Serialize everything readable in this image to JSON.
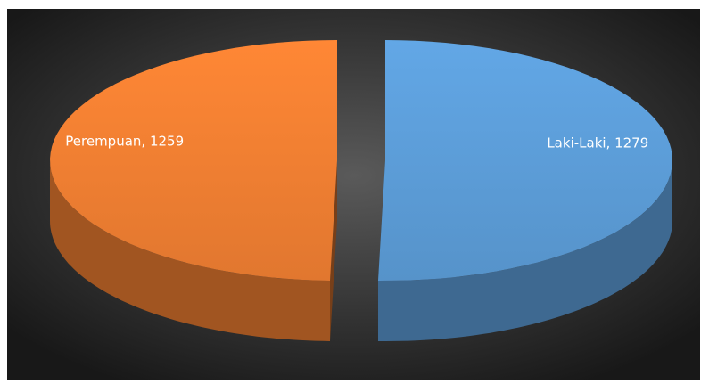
{
  "chart_data": {
    "type": "pie3d",
    "values": [
      1279,
      1259
    ],
    "value_labels": [
      "Laki-Laki, 1279",
      "Perempuan, 1259"
    ],
    "colors": [
      "#5b9bd5",
      "#ed7d31"
    ],
    "exploded": true
  }
}
